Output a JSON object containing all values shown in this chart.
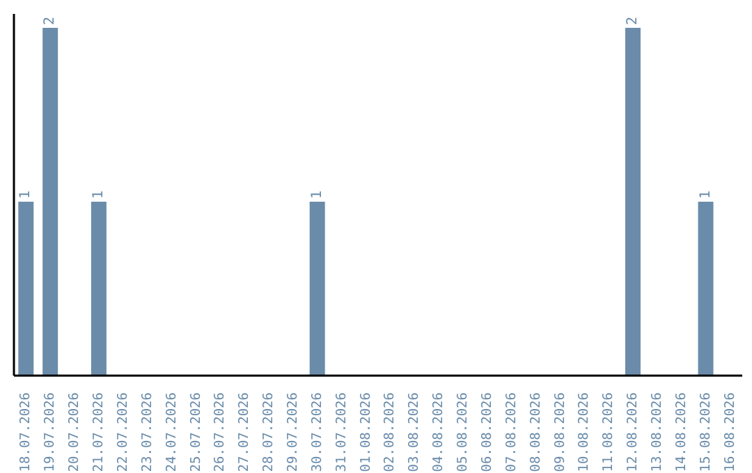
{
  "chart_data": {
    "type": "bar",
    "categories": [
      "18.07.2026",
      "19.07.2026",
      "20.07.2026",
      "21.07.2026",
      "22.07.2026",
      "23.07.2026",
      "24.07.2026",
      "25.07.2026",
      "26.07.2026",
      "27.07.2026",
      "28.07.2026",
      "29.07.2026",
      "30.07.2026",
      "31.07.2026",
      "01.08.2026",
      "02.08.2026",
      "03.08.2026",
      "04.08.2026",
      "05.08.2026",
      "06.08.2026",
      "07.08.2026",
      "08.08.2026",
      "09.08.2026",
      "10.08.2026",
      "11.08.2026",
      "12.08.2026",
      "13.08.2026",
      "14.08.2026",
      "15.08.2026",
      "16.08.2026"
    ],
    "values": [
      1,
      2,
      0,
      1,
      0,
      0,
      0,
      0,
      0,
      0,
      0,
      0,
      1,
      0,
      0,
      0,
      0,
      0,
      0,
      0,
      0,
      0,
      0,
      0,
      0,
      2,
      0,
      0,
      1,
      0
    ],
    "value_labels": [
      "1",
      "2",
      null,
      "1",
      null,
      null,
      null,
      null,
      null,
      null,
      null,
      null,
      "1",
      null,
      null,
      null,
      null,
      null,
      null,
      null,
      null,
      null,
      null,
      null,
      null,
      "2",
      null,
      null,
      "1",
      null
    ],
    "color": "#6a8caa",
    "grid": false,
    "legend": false,
    "tick_labels": "x"
  }
}
